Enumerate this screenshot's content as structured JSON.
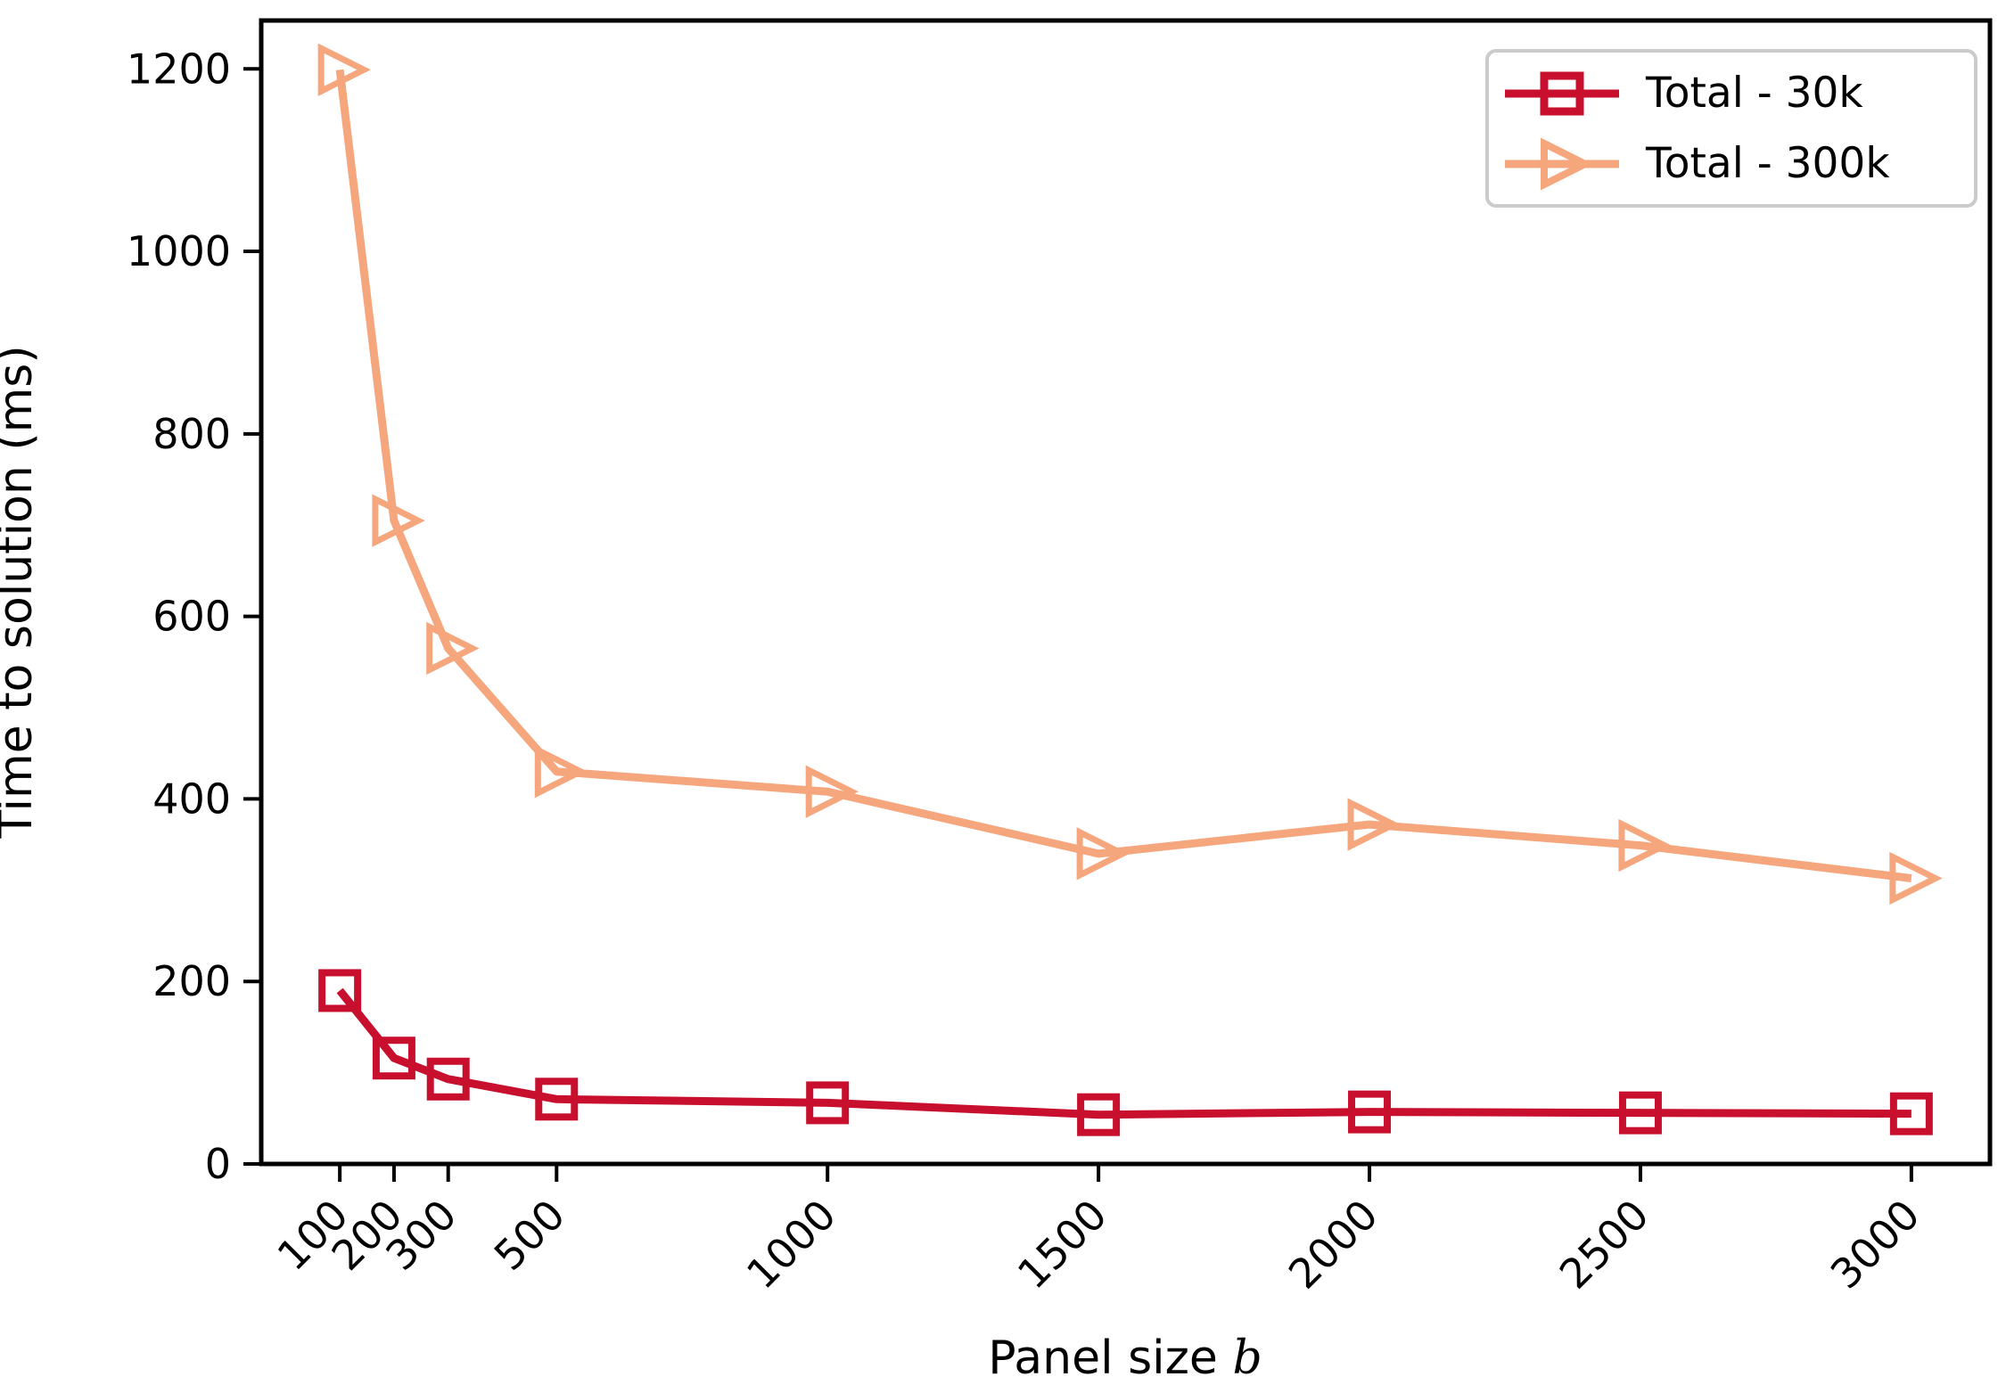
{
  "figure": {
    "background": "#ffffff",
    "xlabel_prefix": "Panel size ",
    "xlabel_var": "b",
    "ylabel": "Time to solution (ms)",
    "axis_color": "#000000",
    "legend_border_color": "#cbcbcb"
  },
  "chart_data": {
    "type": "line",
    "title": "",
    "xlabel": "Panel size b",
    "ylabel": "Time to solution (ms)",
    "x": [
      100,
      200,
      300,
      500,
      1000,
      1500,
      2000,
      2500,
      3000
    ],
    "x_tick_labels": [
      "100",
      "200",
      "300",
      "500",
      "1000",
      "1500",
      "2000",
      "2500",
      "3000"
    ],
    "y_ticks": [
      0,
      200,
      400,
      600,
      800,
      1000,
      1200
    ],
    "xlim": [
      -45,
      3145
    ],
    "ylim": [
      0,
      1253
    ],
    "grid": false,
    "legend_position": "upper right",
    "series": [
      {
        "name": "Total - 30k",
        "color": "#c8102e",
        "marker": "square",
        "values": [
          190,
          116,
          93,
          71,
          67,
          54,
          57,
          56,
          55
        ]
      },
      {
        "name": "Total - 300k",
        "color": "#f5a67d",
        "marker": "triangle-right",
        "values": [
          1199,
          705,
          565,
          430,
          408,
          340,
          372,
          349,
          313
        ]
      }
    ]
  }
}
